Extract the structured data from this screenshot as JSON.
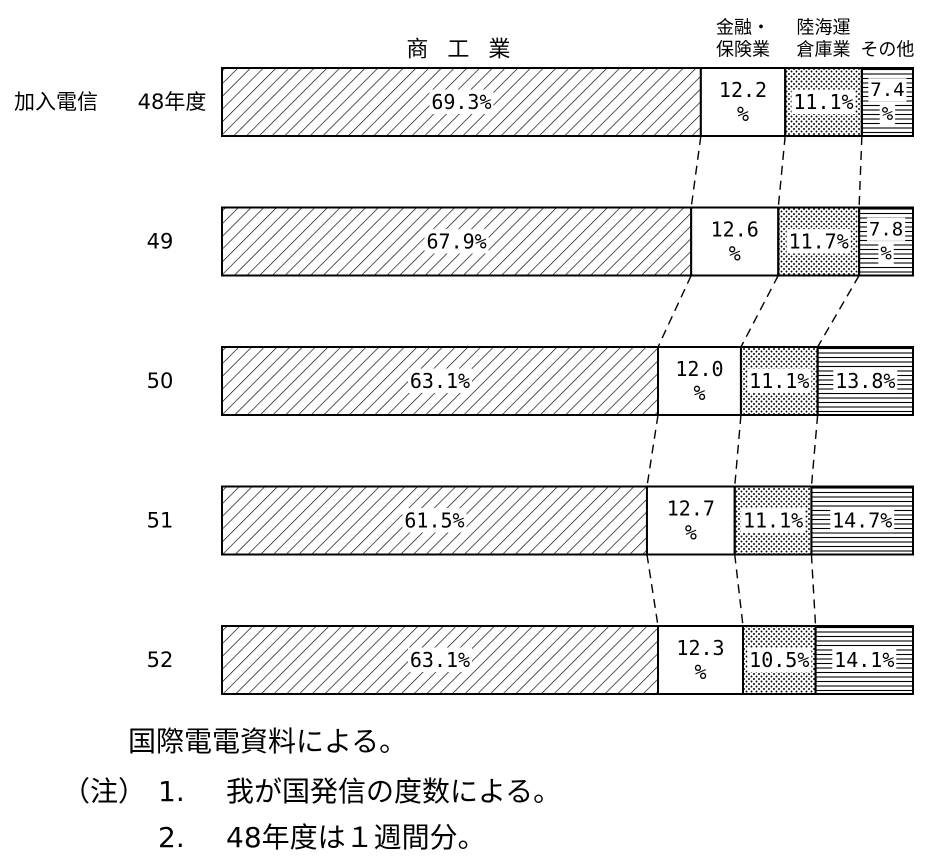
{
  "chart_data": {
    "type": "bar",
    "orientation": "horizontal",
    "stacked": true,
    "percent_stacked": true,
    "series_header": "加入電信",
    "categories": [
      "48年度",
      "49",
      "50",
      "51",
      "52"
    ],
    "series": [
      {
        "name": "商 工 業",
        "pattern": "diagonal-hatch",
        "values": [
          69.3,
          67.9,
          63.1,
          61.5,
          63.1
        ],
        "labels": [
          "69.3%",
          "67.9%",
          "63.1%",
          "61.5%",
          "63.1%"
        ]
      },
      {
        "name": "金融・保険業",
        "name_lines": [
          "金融・",
          "保険業"
        ],
        "pattern": "blank",
        "values": [
          12.2,
          12.6,
          12.0,
          12.7,
          12.3
        ],
        "labels": [
          [
            "12.2",
            "%"
          ],
          [
            "12.6",
            "%"
          ],
          [
            "12.0",
            "%"
          ],
          [
            "12.7",
            "%"
          ],
          [
            "12.3",
            "%"
          ]
        ]
      },
      {
        "name": "陸海運倉庫業",
        "name_lines": [
          "陸海運",
          "倉庫業"
        ],
        "pattern": "dots",
        "values": [
          11.1,
          11.7,
          11.1,
          11.1,
          10.5
        ],
        "labels": [
          "11.1%",
          "11.7%",
          "11.1%",
          "11.1%",
          "10.5%"
        ]
      },
      {
        "name": "その他",
        "pattern": "horizontal-lines",
        "values": [
          7.4,
          7.8,
          13.8,
          14.7,
          14.1
        ],
        "labels": [
          [
            "7.4",
            "%"
          ],
          [
            "7.8",
            "%"
          ],
          "13.8%",
          "14.7%",
          "14.1%"
        ]
      }
    ],
    "legend": "category names above the first bar",
    "connector_lines": "dashed",
    "grid": false
  },
  "source_note": "国際電電資料による。",
  "notes": {
    "head": "（注）",
    "items": [
      {
        "num": "1.",
        "text": "我が国発信の度数による。"
      },
      {
        "num": "2.",
        "text": "48年度は１週間分。"
      }
    ]
  }
}
